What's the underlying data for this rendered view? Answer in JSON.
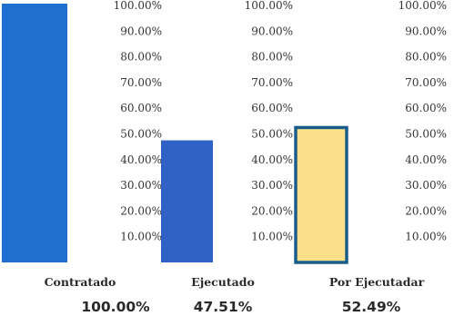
{
  "chart_data": {
    "type": "bar",
    "categories": [
      "Contratado",
      "Ejecutado",
      "Por Ejecutadar"
    ],
    "values": [
      100.0,
      47.51,
      52.49
    ],
    "value_labels": [
      "100.00%",
      "47.51%",
      "52.49%"
    ],
    "ylim": [
      0,
      100
    ],
    "tick_labels": [
      "10.00%",
      "20.00%",
      "30.00%",
      "40.00%",
      "50.00%",
      "60.00%",
      "70.00%",
      "80.00%",
      "90.00%",
      "100.00%"
    ],
    "tick_values": [
      10,
      20,
      30,
      40,
      50,
      60,
      70,
      80,
      90,
      100
    ],
    "grid": false,
    "colors": {
      "Contratado": "#1f6fd1",
      "Ejecutado": "#2f62c4",
      "Por Ejecutadar": "#fde08a"
    },
    "bar_outline": {
      "Por Ejecutadar": "#1b5d8a"
    }
  }
}
